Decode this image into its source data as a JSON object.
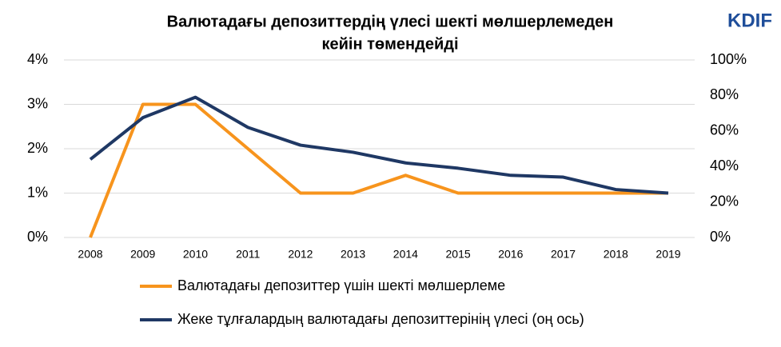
{
  "logo": "KDIF",
  "chart_data": {
    "type": "line",
    "title": [
      "Валютадағы депозиттердің үлесі шекті мөлшерлемеден",
      "кейін төмендейді"
    ],
    "categories": [
      "2008",
      "2009",
      "2010",
      "2011",
      "2012",
      "2013",
      "2014",
      "2015",
      "2016",
      "2017",
      "2018",
      "2019"
    ],
    "series": [
      {
        "name": "Валютадағы депозиттер үшін шекті мөлшерлеме",
        "color": "#f7941d",
        "axis": "y",
        "values": [
          0,
          3,
          3,
          2,
          1,
          1,
          1.4,
          1,
          1,
          1,
          1,
          1
        ]
      },
      {
        "name": "Жеке тұлғалардың валютадағы депозиттерінің үлесі (оң ось)",
        "color": "#1f3864",
        "axis": "y2",
        "values": [
          44,
          67.5,
          79,
          62,
          52,
          48,
          42,
          39,
          35,
          34,
          27,
          25
        ]
      }
    ],
    "ylim": [
      0,
      4
    ],
    "yticks": [
      {
        "value": 0,
        "label": "0%"
      },
      {
        "value": 1,
        "label": "1%"
      },
      {
        "value": 2,
        "label": "2%"
      },
      {
        "value": 3,
        "label": "3%"
      },
      {
        "value": 4,
        "label": "4%"
      }
    ],
    "y2lim": [
      0,
      100
    ],
    "y2ticks": [
      {
        "value": 0,
        "label": "0%"
      },
      {
        "value": 20,
        "label": "20%"
      },
      {
        "value": 40,
        "label": "40%"
      },
      {
        "value": 60,
        "label": "60%"
      },
      {
        "value": 80,
        "label": "80%"
      },
      {
        "value": 100,
        "label": "100%"
      }
    ],
    "grid": true
  }
}
